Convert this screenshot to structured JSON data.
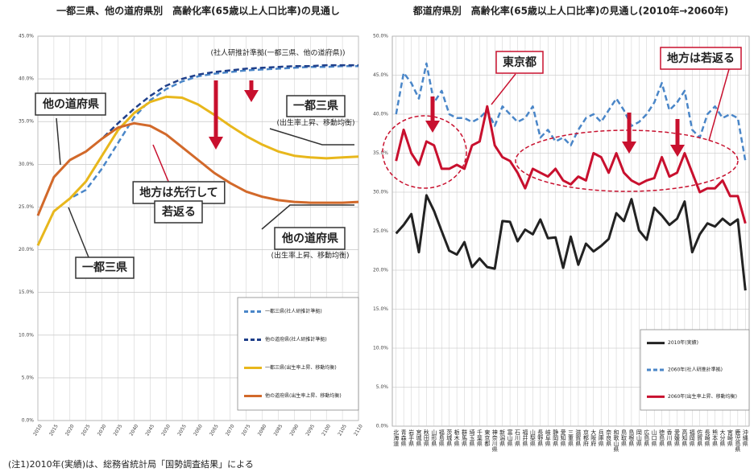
{
  "chart_data": [
    {
      "type": "line",
      "title": "一都三県、他の道府県別　高齢化率(65歳以上人口比率)の見通し",
      "x": [
        2010,
        2015,
        2020,
        2025,
        2030,
        2035,
        2040,
        2045,
        2050,
        2055,
        2060,
        2065,
        2070,
        2075,
        2080,
        2085,
        2090,
        2095,
        2100,
        2105,
        2110
      ],
      "xlim": [
        2010,
        2110
      ],
      "xticks": [
        2010,
        2015,
        2020,
        2025,
        2030,
        2035,
        2040,
        2045,
        2050,
        2055,
        2060,
        2065,
        2070,
        2075,
        2080,
        2085,
        2090,
        2095,
        2100,
        2105,
        2110
      ],
      "ylim": [
        0,
        45
      ],
      "yticks": [
        {
          "value": 0,
          "label": "0.0%"
        },
        {
          "value": 5,
          "label": "5.0%"
        },
        {
          "value": 10,
          "label": "10.0%"
        },
        {
          "value": 15,
          "label": "15.0%"
        },
        {
          "value": 20,
          "label": "20.0%"
        },
        {
          "value": 25,
          "label": "25.0%"
        },
        {
          "value": 30,
          "label": "30.0%"
        },
        {
          "value": 35,
          "label": "35.0%"
        },
        {
          "value": 40,
          "label": "40.0%"
        },
        {
          "value": 45,
          "label": "45.0%"
        }
      ],
      "grid": true,
      "legend": "lower right",
      "series": [
        {
          "name": "一都三県(社人研推計準拠)",
          "color": "#4a86c8",
          "line_style": "dashed",
          "values": [
            20.5,
            24.5,
            26,
            27,
            29.5,
            32.5,
            35.5,
            37.5,
            38.8,
            39.7,
            40.3,
            40.6,
            40.8,
            41,
            41.1,
            41.2,
            41.3,
            41.4,
            41.4,
            41.5,
            41.5
          ]
        },
        {
          "name": "他の道府県(社人研推計準拠)",
          "color": "#1f3f8a",
          "line_style": "dashed",
          "values": [
            24,
            28.5,
            30.5,
            31.5,
            33,
            34.8,
            36.5,
            38,
            39.2,
            40,
            40.5,
            40.8,
            41,
            41.2,
            41.3,
            41.4,
            41.5,
            41.5,
            41.6,
            41.6,
            41.6
          ]
        },
        {
          "name": "一都三県(出生率上昇、移動均衡)",
          "color": "#e8b71c",
          "line_style": "solid",
          "values": [
            20.5,
            24.5,
            26,
            28,
            31,
            34,
            36,
            37.3,
            37.9,
            37.8,
            37,
            35.8,
            34.5,
            33.3,
            32.3,
            31.5,
            31,
            30.8,
            30.7,
            30.8,
            30.9
          ]
        },
        {
          "name": "他の道府県(出生率上昇、移動均衡)",
          "color": "#d2692a",
          "line_style": "solid",
          "values": [
            24,
            28.5,
            30.5,
            31.5,
            33,
            34.3,
            34.8,
            34.5,
            33.5,
            32,
            30.5,
            29,
            27.8,
            26.8,
            26.2,
            25.8,
            25.6,
            25.5,
            25.5,
            25.5,
            25.6
          ]
        }
      ],
      "annotations": [
        "(社人研推計準拠(一都三県、他の道府県))",
        "他の道府県",
        "一都三県",
        "一都三県",
        "(出生率上昇、移動均衡)",
        "地方は先行して",
        "若返る",
        "他の道府県",
        "(出生率上昇、移動均衡)"
      ]
    },
    {
      "type": "line",
      "title": "都道府県別　高齢化率(65歳以上人口比率)の見通し(2010年→2060年)",
      "categories": [
        "北海道",
        "青森県",
        "岩手県",
        "宮城県",
        "秋田県",
        "山形県",
        "福島県",
        "茨城県",
        "栃木県",
        "群馬県",
        "埼玉県",
        "千葉県",
        "東京都",
        "神奈川県",
        "新潟県",
        "富山県",
        "石川県",
        "福井県",
        "山梨県",
        "長野県",
        "岐阜県",
        "静岡県",
        "愛知県",
        "三重県",
        "滋賀県",
        "京都府",
        "大阪府",
        "兵庫県",
        "奈良県",
        "和歌山県",
        "鳥取県",
        "島根県",
        "岡山県",
        "広島県",
        "山口県",
        "徳島県",
        "香川県",
        "愛媛県",
        "高知県",
        "福岡県",
        "佐賀県",
        "長崎県",
        "熊本県",
        "大分県",
        "宮崎県",
        "鹿児島県",
        "沖縄県"
      ],
      "ylim": [
        0,
        50
      ],
      "yticks": [
        {
          "value": 0,
          "label": "0.0%"
        },
        {
          "value": 5,
          "label": "5.0%"
        },
        {
          "value": 10,
          "label": "10.0%"
        },
        {
          "value": 15,
          "label": "15.0%"
        },
        {
          "value": 20,
          "label": "20.0%"
        },
        {
          "value": 25,
          "label": "25.0%"
        },
        {
          "value": 30,
          "label": "30.0%"
        },
        {
          "value": 35,
          "label": "35.0%"
        },
        {
          "value": 40,
          "label": "40.0%"
        },
        {
          "value": 45,
          "label": "45.0%"
        },
        {
          "value": 50,
          "label": "50.0%"
        }
      ],
      "grid": true,
      "legend": "lower right",
      "series": [
        {
          "name": "2010年(実績)",
          "color": "#222222",
          "line_style": "solid",
          "values": [
            24.7,
            25.8,
            27.2,
            22.3,
            29.6,
            27.6,
            25,
            22.5,
            22,
            23.6,
            20.4,
            21.5,
            20.4,
            20.2,
            26.3,
            26.2,
            23.7,
            25.2,
            24.6,
            26.5,
            24.1,
            24.2,
            20.3,
            24.3,
            20.7,
            23.4,
            22.4,
            23.1,
            24,
            27.3,
            26.3,
            29.1,
            25.1,
            23.9,
            28,
            27,
            25.8,
            26.6,
            28.8,
            22.3,
            24.6,
            26,
            25.6,
            26.6,
            25.8,
            26.5,
            17.4
          ]
        },
        {
          "name": "2060年(社人研推計準拠)",
          "color": "#4a86c8",
          "line_style": "dashed",
          "values": [
            40,
            45.3,
            44,
            42,
            46.5,
            41.5,
            43,
            40,
            39.5,
            39.5,
            39,
            39.5,
            40.5,
            38.5,
            41,
            40,
            39,
            39.5,
            41,
            37,
            38,
            36.5,
            37,
            36,
            38,
            39.5,
            40,
            39,
            40.5,
            42,
            40.5,
            38.5,
            39,
            40,
            41.5,
            44,
            40.5,
            41.5,
            43,
            38,
            37,
            40,
            41,
            39.5,
            40,
            39.5,
            34
          ]
        },
        {
          "name": "2060年(出生率上昇、移動均衡)",
          "color": "#c8102e",
          "line_style": "solid",
          "values": [
            34,
            38,
            35,
            33.5,
            36.5,
            36,
            33,
            33,
            33.5,
            33,
            36,
            36.5,
            41,
            36,
            34.5,
            34,
            32.5,
            30.5,
            33,
            32.5,
            32,
            33,
            31.5,
            31,
            32,
            31.5,
            35,
            34.5,
            32.5,
            35,
            32.5,
            31.5,
            31,
            31.5,
            31.8,
            34.5,
            32,
            32.5,
            35,
            32.5,
            30,
            30.5,
            30.5,
            31.5,
            29.5,
            29.5,
            26
          ]
        }
      ],
      "annotations": [
        "東京都",
        "地方は若返る"
      ]
    }
  ],
  "footnote": "(注1)2010年(実績)は、総務省統計局「国勢調査結果」による"
}
